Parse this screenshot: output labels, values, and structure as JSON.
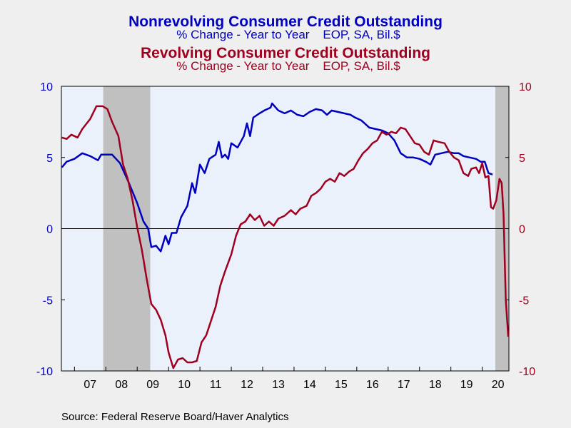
{
  "titles": [
    {
      "title": "Nonrevolving Consumer Credit Outstanding",
      "subtitle": "% Change - Year to Year    EOP, SA, Bil.$",
      "color": "#0000c0"
    },
    {
      "title": "Revolving Consumer Credit Outstanding",
      "subtitle": "% Change - Year to Year    EOP, SA, Bil.$",
      "color": "#a00020"
    }
  ],
  "source": "Source:  Federal Reserve Board/Haver Analytics",
  "chart_data": {
    "type": "line",
    "x_unit": "year",
    "xlim": [
      2006.583,
      2020.417
    ],
    "ylim": [
      -10,
      10
    ],
    "yticks": [
      -10,
      -5,
      0,
      5,
      10
    ],
    "yticks_left_labels": [
      "-10",
      "-5",
      "0",
      "5",
      "10"
    ],
    "yticks_right_labels": [
      "-10",
      "-5",
      "0",
      "5",
      "10"
    ],
    "xtick_labels": [
      "07",
      "08",
      "09",
      "10",
      "11",
      "12",
      "13",
      "14",
      "15",
      "16",
      "17",
      "18",
      "19",
      "20"
    ],
    "xtick_label_positions": [
      2007.0,
      2008.0,
      2009.0,
      2010.0,
      2011.0,
      2012.0,
      2013.0,
      2014.0,
      2015.0,
      2016.0,
      2017.0,
      2018.0,
      2019.0,
      2020.0
    ],
    "recessions": [
      [
        2007.917,
        2009.417
      ],
      [
        2020.083,
        2020.417
      ]
    ],
    "recession_color": "#c0c0c0",
    "plot_background": "#ebf1fb",
    "zero_line": true,
    "grid": false,
    "legend": "none",
    "series": [
      {
        "name": "Nonrevolving Consumer Credit Outstanding",
        "color": "#0000c0",
        "points": [
          [
            2006.6,
            4.3
          ],
          [
            2006.75,
            4.7
          ],
          [
            2007.0,
            4.9
          ],
          [
            2007.25,
            5.3
          ],
          [
            2007.5,
            5.1
          ],
          [
            2007.75,
            4.8
          ],
          [
            2007.85,
            5.2
          ],
          [
            2008.2,
            5.2
          ],
          [
            2008.45,
            4.6
          ],
          [
            2008.7,
            3.4
          ],
          [
            2009.0,
            1.8
          ],
          [
            2009.2,
            0.5
          ],
          [
            2009.35,
            0.0
          ],
          [
            2009.45,
            -1.3
          ],
          [
            2009.6,
            -1.2
          ],
          [
            2009.75,
            -1.6
          ],
          [
            2009.9,
            -0.5
          ],
          [
            2010.0,
            -1.1
          ],
          [
            2010.1,
            -0.3
          ],
          [
            2010.25,
            -0.3
          ],
          [
            2010.4,
            0.8
          ],
          [
            2010.6,
            1.6
          ],
          [
            2010.75,
            3.2
          ],
          [
            2010.85,
            2.5
          ],
          [
            2011.0,
            4.5
          ],
          [
            2011.15,
            3.9
          ],
          [
            2011.3,
            4.9
          ],
          [
            2011.5,
            5.2
          ],
          [
            2011.6,
            6.1
          ],
          [
            2011.7,
            5.0
          ],
          [
            2011.8,
            5.2
          ],
          [
            2011.9,
            4.9
          ],
          [
            2012.0,
            6.0
          ],
          [
            2012.2,
            5.7
          ],
          [
            2012.4,
            6.5
          ],
          [
            2012.5,
            7.4
          ],
          [
            2012.6,
            6.5
          ],
          [
            2012.7,
            7.8
          ],
          [
            2012.9,
            8.1
          ],
          [
            2013.05,
            8.3
          ],
          [
            2013.25,
            8.5
          ],
          [
            2013.3,
            8.8
          ],
          [
            2013.5,
            8.3
          ],
          [
            2013.7,
            8.1
          ],
          [
            2013.9,
            8.3
          ],
          [
            2014.1,
            8.0
          ],
          [
            2014.3,
            7.9
          ],
          [
            2014.5,
            8.2
          ],
          [
            2014.7,
            8.4
          ],
          [
            2014.9,
            8.3
          ],
          [
            2015.05,
            8.0
          ],
          [
            2015.2,
            8.3
          ],
          [
            2015.4,
            8.2
          ],
          [
            2015.6,
            8.1
          ],
          [
            2015.8,
            8.0
          ],
          [
            2015.95,
            7.8
          ],
          [
            2016.15,
            7.6
          ],
          [
            2016.4,
            7.1
          ],
          [
            2016.6,
            7.0
          ],
          [
            2016.8,
            6.9
          ],
          [
            2017.0,
            6.7
          ],
          [
            2017.2,
            6.2
          ],
          [
            2017.4,
            5.3
          ],
          [
            2017.6,
            5.0
          ],
          [
            2017.8,
            5.0
          ],
          [
            2018.0,
            4.9
          ],
          [
            2018.2,
            4.7
          ],
          [
            2018.35,
            4.5
          ],
          [
            2018.5,
            5.2
          ],
          [
            2018.7,
            5.3
          ],
          [
            2018.9,
            5.4
          ],
          [
            2019.1,
            5.3
          ],
          [
            2019.25,
            5.3
          ],
          [
            2019.4,
            5.1
          ],
          [
            2019.6,
            5.0
          ],
          [
            2019.8,
            4.9
          ],
          [
            2019.95,
            4.7
          ],
          [
            2020.08,
            4.7
          ],
          [
            2020.2,
            3.9
          ],
          [
            2020.33,
            3.8
          ]
        ]
      },
      {
        "name": "Revolving Consumer Credit Outstanding",
        "color": "#a00020",
        "points": [
          [
            2006.6,
            6.4
          ],
          [
            2006.75,
            6.3
          ],
          [
            2006.9,
            6.6
          ],
          [
            2007.1,
            6.4
          ],
          [
            2007.25,
            7.0
          ],
          [
            2007.5,
            7.7
          ],
          [
            2007.7,
            8.6
          ],
          [
            2007.9,
            8.6
          ],
          [
            2008.05,
            8.4
          ],
          [
            2008.2,
            7.5
          ],
          [
            2008.4,
            6.5
          ],
          [
            2008.55,
            4.5
          ],
          [
            2008.7,
            3.5
          ],
          [
            2008.85,
            2.0
          ],
          [
            2009.0,
            0.1
          ],
          [
            2009.15,
            -1.5
          ],
          [
            2009.3,
            -3.5
          ],
          [
            2009.45,
            -5.3
          ],
          [
            2009.6,
            -5.7
          ],
          [
            2009.75,
            -6.4
          ],
          [
            2009.9,
            -7.5
          ],
          [
            2010.0,
            -8.7
          ],
          [
            2010.15,
            -9.8
          ],
          [
            2010.3,
            -9.2
          ],
          [
            2010.45,
            -9.1
          ],
          [
            2010.6,
            -9.4
          ],
          [
            2010.75,
            -9.4
          ],
          [
            2010.9,
            -9.3
          ],
          [
            2011.05,
            -8.0
          ],
          [
            2011.2,
            -7.5
          ],
          [
            2011.35,
            -6.5
          ],
          [
            2011.5,
            -5.5
          ],
          [
            2011.65,
            -4.0
          ],
          [
            2011.8,
            -3.0
          ],
          [
            2012.0,
            -1.8
          ],
          [
            2012.15,
            -0.5
          ],
          [
            2012.3,
            0.3
          ],
          [
            2012.45,
            0.5
          ],
          [
            2012.6,
            1.0
          ],
          [
            2012.75,
            0.6
          ],
          [
            2012.9,
            0.9
          ],
          [
            2013.05,
            0.2
          ],
          [
            2013.2,
            0.5
          ],
          [
            2013.35,
            0.2
          ],
          [
            2013.5,
            0.7
          ],
          [
            2013.7,
            0.9
          ],
          [
            2013.9,
            1.3
          ],
          [
            2014.05,
            1.0
          ],
          [
            2014.2,
            1.4
          ],
          [
            2014.4,
            1.6
          ],
          [
            2014.55,
            2.3
          ],
          [
            2014.7,
            2.5
          ],
          [
            2014.85,
            2.8
          ],
          [
            2015.0,
            3.3
          ],
          [
            2015.15,
            3.5
          ],
          [
            2015.3,
            3.3
          ],
          [
            2015.45,
            3.9
          ],
          [
            2015.6,
            3.7
          ],
          [
            2015.75,
            4.0
          ],
          [
            2015.9,
            4.2
          ],
          [
            2016.05,
            4.8
          ],
          [
            2016.2,
            5.3
          ],
          [
            2016.35,
            5.6
          ],
          [
            2016.5,
            6.0
          ],
          [
            2016.65,
            6.2
          ],
          [
            2016.8,
            6.8
          ],
          [
            2016.95,
            6.6
          ],
          [
            2017.1,
            6.8
          ],
          [
            2017.25,
            6.7
          ],
          [
            2017.4,
            7.1
          ],
          [
            2017.55,
            7.0
          ],
          [
            2017.7,
            6.5
          ],
          [
            2017.85,
            6.0
          ],
          [
            2018.0,
            5.9
          ],
          [
            2018.15,
            5.4
          ],
          [
            2018.3,
            5.2
          ],
          [
            2018.45,
            6.2
          ],
          [
            2018.6,
            6.1
          ],
          [
            2018.8,
            6.0
          ],
          [
            2018.95,
            5.4
          ],
          [
            2019.1,
            5.0
          ],
          [
            2019.25,
            4.8
          ],
          [
            2019.4,
            3.9
          ],
          [
            2019.55,
            3.7
          ],
          [
            2019.65,
            4.2
          ],
          [
            2019.8,
            4.3
          ],
          [
            2019.9,
            3.9
          ],
          [
            2020.0,
            4.6
          ],
          [
            2020.1,
            3.6
          ],
          [
            2020.2,
            3.7
          ],
          [
            2020.28,
            1.5
          ],
          [
            2020.35,
            1.4
          ],
          [
            2020.45,
            2.0
          ],
          [
            2020.55,
            3.5
          ],
          [
            2020.62,
            3.2
          ],
          [
            2020.68,
            1.0
          ],
          [
            2020.75,
            -5.0
          ],
          [
            2020.83,
            -7.6
          ]
        ]
      }
    ]
  }
}
